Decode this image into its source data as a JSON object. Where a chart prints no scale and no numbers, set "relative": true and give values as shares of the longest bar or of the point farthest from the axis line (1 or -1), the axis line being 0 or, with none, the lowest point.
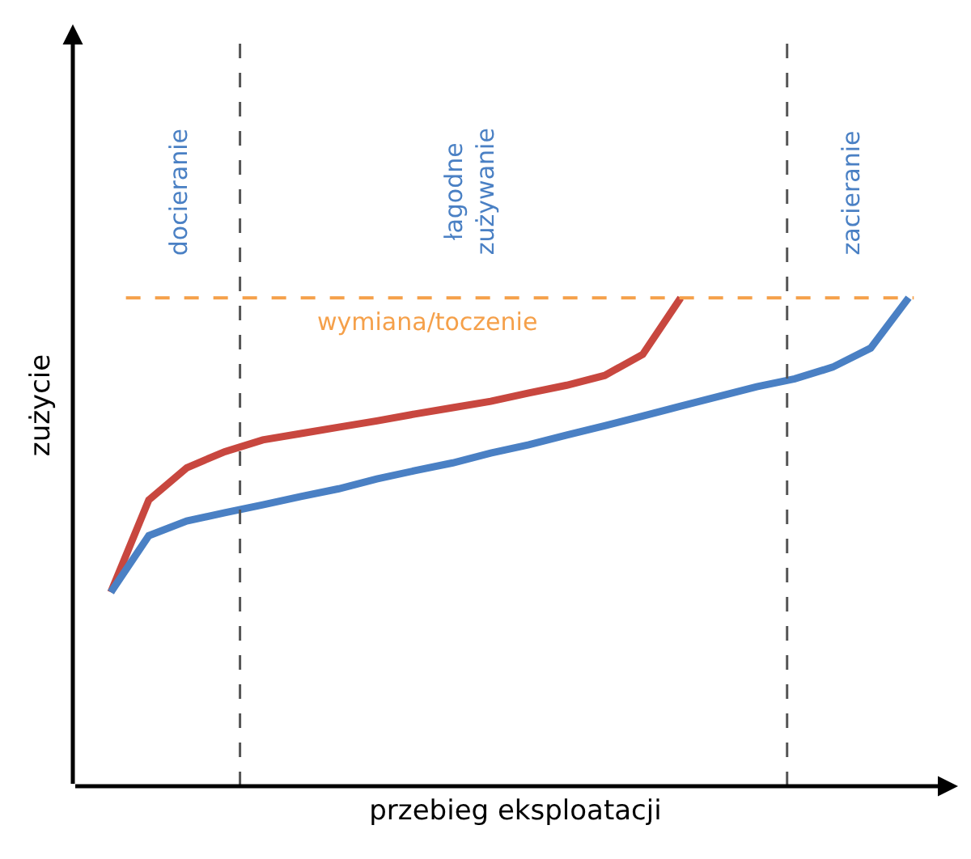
{
  "chart_data": {
    "type": "line",
    "relative": true,
    "xlabel": "przebieg eksploatacji",
    "ylabel": "zużycie",
    "marker": "none",
    "line_style": "solid",
    "categories": [
      null,
      null,
      null,
      null,
      null,
      null,
      null,
      null,
      null,
      null,
      null,
      null,
      null,
      null,
      null,
      null,
      null,
      null,
      null,
      null,
      null,
      null
    ],
    "series": [
      {
        "color": "#c8473f",
        "values": [
          0.397,
          0.586,
          0.652,
          0.685,
          0.709,
          0.722,
          0.735,
          0.748,
          0.762,
          0.775,
          0.788,
          0.805,
          0.821,
          0.841,
          0.884,
          1.0,
          null,
          null,
          null,
          null,
          null,
          null
        ]
      },
      {
        "color": "#4a80c4",
        "values": [
          0.397,
          0.513,
          0.543,
          0.56,
          0.576,
          0.593,
          0.609,
          0.629,
          0.646,
          0.662,
          0.682,
          0.699,
          0.719,
          0.738,
          0.758,
          0.778,
          0.798,
          0.818,
          0.834,
          0.858,
          0.897,
          1.0
        ]
      }
    ],
    "ref_lines": [
      {
        "axis": "y",
        "value": 1.0,
        "label": "wymiana/toczenie",
        "color": "#f5a04a",
        "line_style": "dashed"
      }
    ],
    "annotations": [
      "docieranie",
      "łagodne\nzużywanie",
      "zacieranie"
    ]
  }
}
